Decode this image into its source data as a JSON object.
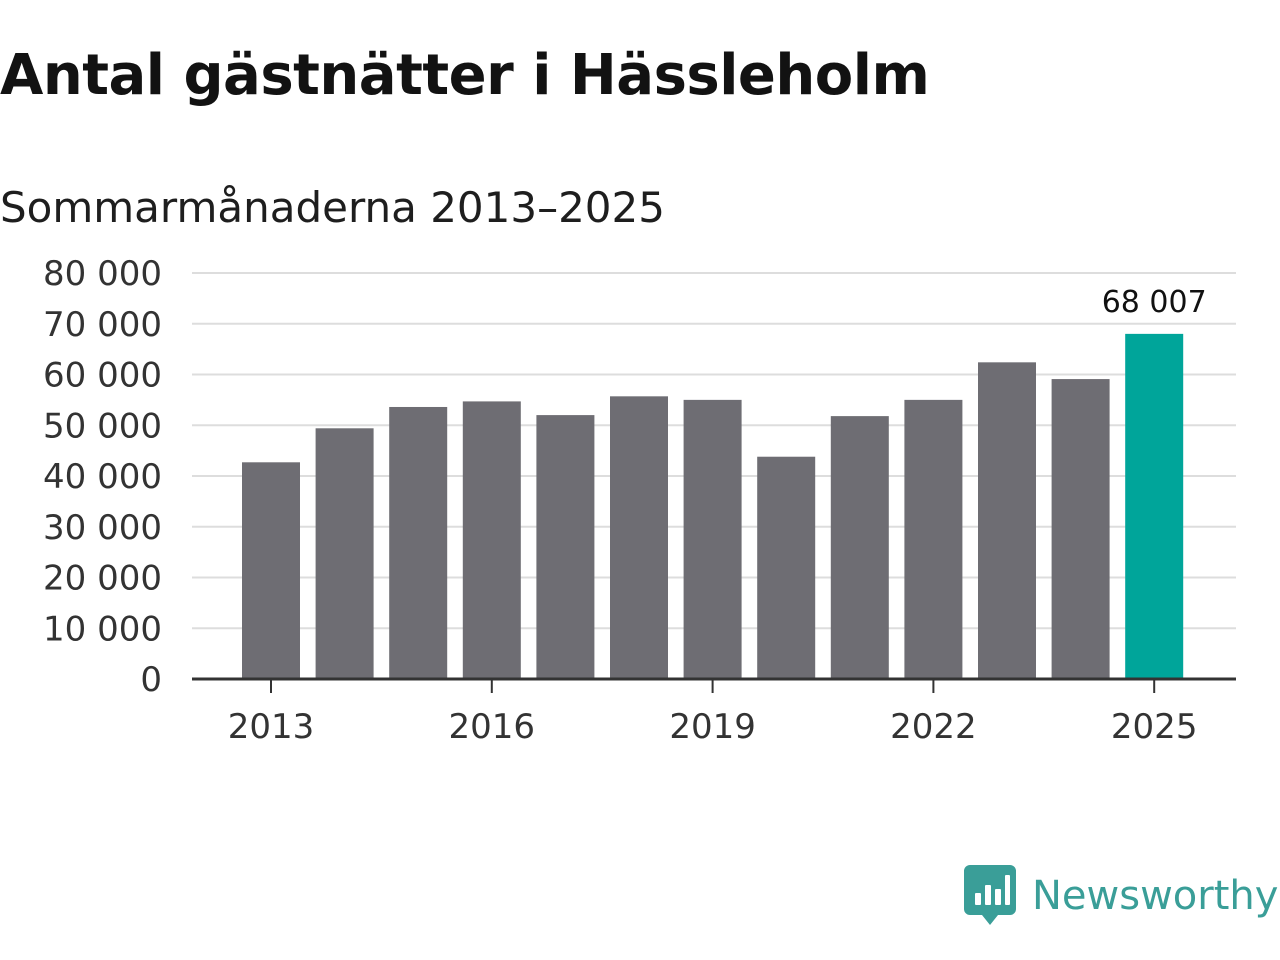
{
  "title": "Antal gästnätter i Hässleholm",
  "subtitle": "Sommarmånaderna 2013–2025",
  "brand": {
    "name": "Newsworthy",
    "icon": "newsworthy-logo-icon",
    "color": "#3a9e98"
  },
  "colors": {
    "bar": "#6e6d73",
    "highlight": "#00a59a",
    "grid": "#dddddd",
    "axis": "#333333"
  },
  "chart_data": {
    "type": "bar",
    "title": "Antal gästnätter i Hässleholm",
    "subtitle": "Sommarmånaderna 2013–2025",
    "xlabel": "",
    "ylabel": "",
    "categories": [
      "2013",
      "2014",
      "2015",
      "2016",
      "2017",
      "2018",
      "2019",
      "2020",
      "2021",
      "2022",
      "2023",
      "2024",
      "2025"
    ],
    "values": [
      42700,
      49400,
      53600,
      54700,
      52000,
      55700,
      55000,
      43800,
      51800,
      55000,
      62400,
      59100,
      68007
    ],
    "highlight_category": "2025",
    "data_labels": [
      {
        "category": "2025",
        "text": "68 007"
      }
    ],
    "x_ticks": [
      "2013",
      "2016",
      "2019",
      "2022",
      "2025"
    ],
    "y_ticks": [
      0,
      10000,
      20000,
      30000,
      40000,
      50000,
      60000,
      70000,
      80000
    ],
    "y_tick_labels": [
      "0",
      "10 000",
      "20 000",
      "30 000",
      "40 000",
      "50 000",
      "60 000",
      "70 000",
      "80 000"
    ],
    "ylim": [
      0,
      80000
    ],
    "grid": true,
    "legend": "none"
  }
}
